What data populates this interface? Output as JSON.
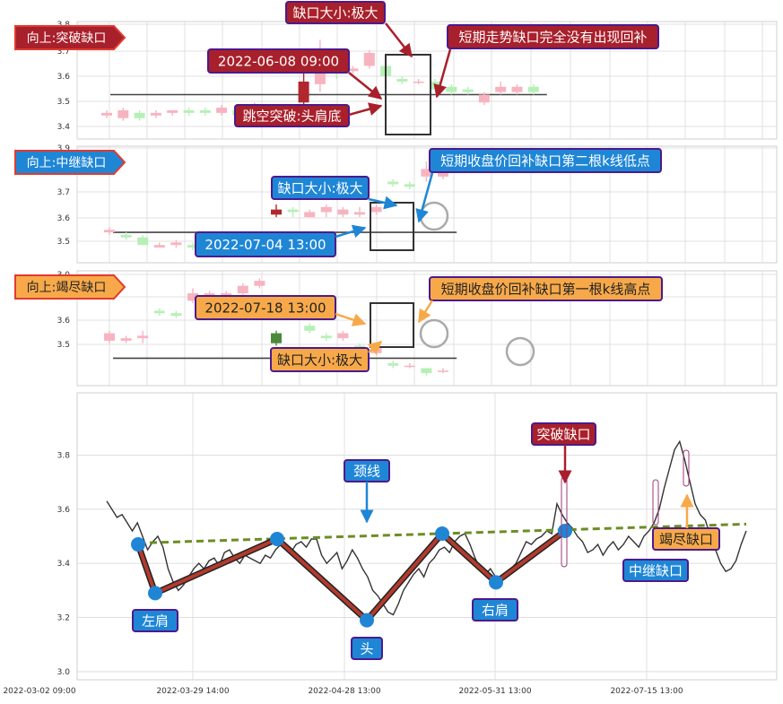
{
  "colors": {
    "up_candle": "#f7b4c0",
    "down_candle": "#b6f0b6",
    "highlight_up": "#b0272d",
    "highlight_down": "#4a8a3a",
    "red_callout": "#a8202b",
    "blue_callout": "#1f86d6",
    "orange_callout": "#f7a94a",
    "callout_border": "#4b1a8c",
    "neckline": "#6b8e23",
    "price_line": "#333333",
    "pattern_line": "#b33a2e",
    "marker": "#1f86d6",
    "grid": "#d9d9d9"
  },
  "panels": [
    {
      "title": "向上:突破缺口",
      "title_style": "red",
      "y_ticks": [
        "3.8",
        "3.7",
        "3.6",
        "3.5",
        "3.4"
      ],
      "callouts": [
        {
          "text": "缺口大小:极大",
          "style": "red"
        },
        {
          "text": "2022-06-08 09:00",
          "style": "red"
        },
        {
          "text": "跳空突破:头肩底",
          "style": "red"
        },
        {
          "text": "短期走势缺口完全没有出现回补",
          "style": "red"
        }
      ]
    },
    {
      "title": "向上:中继缺口",
      "title_style": "blue",
      "y_ticks": [
        "3.9",
        "3.7",
        "3.6",
        "3.5"
      ],
      "callouts": [
        {
          "text": "缺口大小:极大",
          "style": "blue"
        },
        {
          "text": "2022-07-04 13:00",
          "style": "blue"
        },
        {
          "text": "短期收盘价回补缺口第二根k线低点",
          "style": "blue"
        }
      ]
    },
    {
      "title": "向上:竭尽缺口",
      "title_style": "orange",
      "y_ticks": [
        "3.0",
        "3.7",
        "3.6",
        "3.5"
      ],
      "callouts": [
        {
          "text": "2022-07-18 13:00",
          "style": "orange"
        },
        {
          "text": "缺口大小:极大",
          "style": "orange"
        },
        {
          "text": "短期收盘价回补缺口第一根k线高点",
          "style": "orange"
        }
      ]
    }
  ],
  "main": {
    "y_ticks": [
      "3.8",
      "3.6",
      "3.4",
      "3.2",
      "3.0"
    ],
    "x_ticks": [
      "2022-03-02 09:00",
      "2022-03-29 14:00",
      "2022-04-28 13:00",
      "2022-05-31 13:00",
      "2022-07-15 13:00"
    ],
    "labels": {
      "left_shoulder": "左肩",
      "head": "头",
      "right_shoulder": "右肩",
      "neckline": "颈线",
      "breakaway": "突破缺口",
      "runaway": "中继缺口",
      "exhaustion": "竭尽缺口"
    }
  },
  "chart_data": [
    {
      "type": "candlestick",
      "title": "向上:突破缺口",
      "ylim": [
        3.35,
        3.8
      ],
      "reference_line": 3.52,
      "candles": [
        {
          "o": 3.44,
          "c": 3.45,
          "h": 3.46,
          "l": 3.43
        },
        {
          "o": 3.43,
          "c": 3.46,
          "h": 3.47,
          "l": 3.42
        },
        {
          "o": 3.45,
          "c": 3.43,
          "h": 3.46,
          "l": 3.42
        },
        {
          "o": 3.44,
          "c": 3.45,
          "h": 3.46,
          "l": 3.43
        },
        {
          "o": 3.45,
          "c": 3.46,
          "h": 3.46,
          "l": 3.44
        },
        {
          "o": 3.46,
          "c": 3.45,
          "h": 3.47,
          "l": 3.44
        },
        {
          "o": 3.46,
          "c": 3.45,
          "h": 3.47,
          "l": 3.44
        },
        {
          "o": 3.45,
          "c": 3.47,
          "h": 3.48,
          "l": 3.44
        },
        {
          "o": 3.46,
          "c": 3.44,
          "h": 3.47,
          "l": 3.43
        },
        {
          "o": 3.43,
          "c": 3.46,
          "h": 3.49,
          "l": 3.42
        },
        {
          "o": 3.44,
          "c": 3.42,
          "h": 3.45,
          "l": 3.41
        },
        {
          "o": 3.42,
          "c": 3.42,
          "h": 3.43,
          "l": 3.41
        },
        {
          "o": 3.49,
          "c": 3.57,
          "h": 3.64,
          "l": 3.48
        },
        {
          "o": 3.56,
          "c": 3.64,
          "h": 3.73,
          "l": 3.53
        },
        {
          "o": 3.65,
          "c": 3.62,
          "h": 3.68,
          "l": 3.58
        },
        {
          "o": 3.61,
          "c": 3.62,
          "h": 3.63,
          "l": 3.6
        },
        {
          "o": 3.63,
          "c": 3.68,
          "h": 3.69,
          "l": 3.62
        },
        {
          "o": 3.63,
          "c": 3.59,
          "h": 3.65,
          "l": 3.58
        },
        {
          "o": 3.58,
          "c": 3.57,
          "h": 3.59,
          "l": 3.56
        },
        {
          "o": 3.57,
          "c": 3.57,
          "h": 3.58,
          "l": 3.56
        },
        {
          "o": 3.57,
          "c": 3.54,
          "h": 3.58,
          "l": 3.54
        },
        {
          "o": 3.55,
          "c": 3.53,
          "h": 3.56,
          "l": 3.52
        },
        {
          "o": 3.54,
          "c": 3.53,
          "h": 3.55,
          "l": 3.52
        },
        {
          "o": 3.49,
          "c": 3.52,
          "h": 3.53,
          "l": 3.48
        },
        {
          "o": 3.53,
          "c": 3.55,
          "h": 3.57,
          "l": 3.52
        },
        {
          "o": 3.53,
          "c": 3.55,
          "h": 3.56,
          "l": 3.52
        },
        {
          "o": 3.55,
          "c": 3.53,
          "h": 3.56,
          "l": 3.52
        }
      ]
    },
    {
      "type": "candlestick",
      "title": "向上:中继缺口",
      "ylim": [
        3.42,
        3.88
      ],
      "reference_line": 3.54,
      "candles": [
        {
          "o": 3.54,
          "c": 3.55,
          "h": 3.56,
          "l": 3.53
        },
        {
          "o": 3.53,
          "c": 3.52,
          "h": 3.54,
          "l": 3.51
        },
        {
          "o": 3.52,
          "c": 3.49,
          "h": 3.53,
          "l": 3.49
        },
        {
          "o": 3.48,
          "c": 3.49,
          "h": 3.5,
          "l": 3.48
        },
        {
          "o": 3.49,
          "c": 3.5,
          "h": 3.51,
          "l": 3.48
        },
        {
          "o": 3.49,
          "c": 3.48,
          "h": 3.5,
          "l": 3.47
        },
        {
          "o": 3.48,
          "c": 3.47,
          "h": 3.49,
          "l": 3.46
        },
        {
          "o": 3.48,
          "c": 3.47,
          "h": 3.49,
          "l": 3.46
        },
        {
          "o": 3.5,
          "c": 3.49,
          "h": 3.51,
          "l": 3.49
        },
        {
          "o": 3.5,
          "c": 3.5,
          "h": 3.51,
          "l": 3.49
        },
        {
          "o": 3.61,
          "c": 3.63,
          "h": 3.65,
          "l": 3.6
        },
        {
          "o": 3.63,
          "c": 3.62,
          "h": 3.64,
          "l": 3.6
        },
        {
          "o": 3.6,
          "c": 3.62,
          "h": 3.63,
          "l": 3.6
        },
        {
          "o": 3.62,
          "c": 3.64,
          "h": 3.65,
          "l": 3.6
        },
        {
          "o": 3.61,
          "c": 3.63,
          "h": 3.64,
          "l": 3.6
        },
        {
          "o": 3.61,
          "c": 3.62,
          "h": 3.64,
          "l": 3.6
        },
        {
          "o": 3.62,
          "c": 3.64,
          "h": 3.65,
          "l": 3.61
        },
        {
          "o": 3.74,
          "c": 3.73,
          "h": 3.75,
          "l": 3.72
        },
        {
          "o": 3.73,
          "c": 3.72,
          "h": 3.74,
          "l": 3.71
        },
        {
          "o": 3.76,
          "c": 3.79,
          "h": 3.82,
          "l": 3.74
        },
        {
          "o": 3.76,
          "c": 3.78,
          "h": 3.8,
          "l": 3.75
        }
      ]
    },
    {
      "type": "candlestick",
      "title": "向上:竭尽缺口",
      "ylim": [
        3.43,
        3.89
      ],
      "reference_line": 3.54,
      "candles": [
        {
          "o": 3.61,
          "c": 3.64,
          "h": 3.65,
          "l": 3.6
        },
        {
          "o": 3.61,
          "c": 3.62,
          "h": 3.63,
          "l": 3.6
        },
        {
          "o": 3.62,
          "c": 3.63,
          "h": 3.65,
          "l": 3.6
        },
        {
          "o": 3.73,
          "c": 3.72,
          "h": 3.74,
          "l": 3.71
        },
        {
          "o": 3.72,
          "c": 3.71,
          "h": 3.73,
          "l": 3.7
        },
        {
          "o": 3.77,
          "c": 3.8,
          "h": 3.82,
          "l": 3.76
        },
        {
          "o": 3.78,
          "c": 3.8,
          "h": 3.81,
          "l": 3.77
        },
        {
          "o": 3.79,
          "c": 3.8,
          "h": 3.81,
          "l": 3.78
        },
        {
          "o": 3.8,
          "c": 3.83,
          "h": 3.84,
          "l": 3.79
        },
        {
          "o": 3.83,
          "c": 3.85,
          "h": 3.86,
          "l": 3.82
        },
        {
          "o": 3.64,
          "c": 3.6,
          "h": 3.65,
          "l": 3.59
        },
        {
          "o": 3.74,
          "c": 3.74,
          "h": 3.76,
          "l": 3.73
        },
        {
          "o": 3.67,
          "c": 3.65,
          "h": 3.68,
          "l": 3.64
        },
        {
          "o": 3.63,
          "c": 3.62,
          "h": 3.64,
          "l": 3.61
        },
        {
          "o": 3.62,
          "c": 3.64,
          "h": 3.65,
          "l": 3.61
        },
        {
          "o": 3.59,
          "c": 3.57,
          "h": 3.6,
          "l": 3.56
        },
        {
          "o": 3.56,
          "c": 3.58,
          "h": 3.59,
          "l": 3.55
        },
        {
          "o": 3.52,
          "c": 3.51,
          "h": 3.53,
          "l": 3.5
        },
        {
          "o": 3.51,
          "c": 3.51,
          "h": 3.52,
          "l": 3.5
        },
        {
          "o": 3.5,
          "c": 3.48,
          "h": 3.5,
          "l": 3.47
        },
        {
          "o": 3.49,
          "c": 3.49,
          "h": 3.5,
          "l": 3.48
        }
      ]
    },
    {
      "type": "line",
      "ylim": [
        2.97,
        4.03
      ],
      "x_ticks": [
        "2022-03-02 09:00",
        "2022-03-29 14:00",
        "2022-04-28 13:00",
        "2022-05-31 13:00",
        "2022-07-15 13:00"
      ],
      "series": [
        {
          "values": [
            3.63,
            3.6,
            3.57,
            3.58,
            3.55,
            3.52,
            3.55,
            3.5,
            3.45,
            3.48,
            3.5,
            3.46,
            3.38,
            3.33,
            3.3,
            3.32,
            3.35,
            3.38,
            3.4,
            3.38,
            3.41,
            3.42,
            3.39,
            3.44,
            3.45,
            3.42,
            3.4,
            3.43,
            3.42,
            3.41,
            3.4,
            3.43,
            3.42,
            3.45,
            3.47,
            3.46,
            3.44,
            3.47,
            3.48,
            3.46,
            3.49,
            3.49,
            3.43,
            3.4,
            3.42,
            3.44,
            3.38,
            3.41,
            3.45,
            3.42,
            3.38,
            3.35,
            3.3,
            3.28,
            3.25,
            3.22,
            3.21,
            3.25,
            3.3,
            3.33,
            3.36,
            3.38,
            3.35,
            3.4,
            3.42,
            3.45,
            3.46,
            3.44,
            3.48,
            3.5,
            3.51,
            3.47,
            3.42,
            3.38,
            3.36,
            3.38,
            3.35,
            3.33,
            3.36,
            3.38,
            3.4,
            3.44,
            3.48,
            3.47,
            3.49,
            3.5,
            3.52,
            3.51,
            3.62,
            3.58,
            3.55,
            3.53,
            3.5,
            3.48,
            3.44,
            3.45,
            3.47,
            3.43,
            3.46,
            3.48,
            3.45,
            3.47,
            3.5,
            3.48,
            3.46,
            3.5,
            3.52,
            3.55,
            3.6,
            3.68,
            3.75,
            3.82,
            3.85,
            3.78,
            3.7,
            3.62,
            3.58,
            3.56,
            3.5,
            3.45,
            3.4,
            3.37,
            3.38,
            3.41,
            3.47,
            3.52
          ]
        }
      ],
      "annotations": [
        {
          "label": "左肩",
          "point": [
            3.47,
            3.29
          ]
        },
        {
          "label": "头",
          "point": 3.19
        },
        {
          "label": "右肩",
          "point": 3.33
        },
        {
          "label": "颈线",
          "point": 3.51
        }
      ]
    }
  ]
}
